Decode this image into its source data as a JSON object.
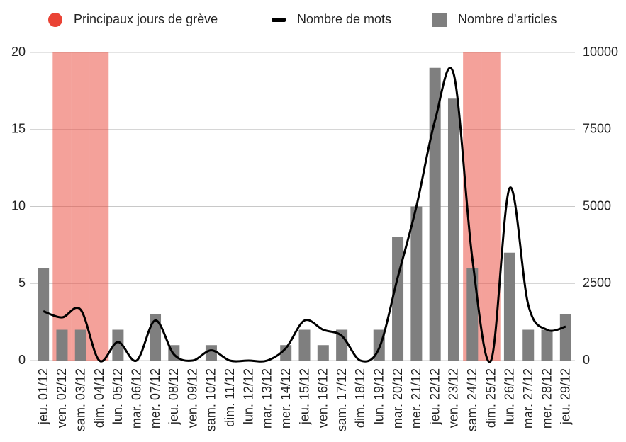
{
  "chart_data": {
    "type": "bar",
    "categories": [
      "jeu. 01/12",
      "ven. 02/12",
      "sam. 03/12",
      "dim. 04/12",
      "lun. 05/12",
      "mar. 06/12",
      "mer. 07/12",
      "jeu. 08/12",
      "ven. 09/12",
      "sam. 10/12",
      "dim. 11/12",
      "lun. 12/12",
      "mar. 13/12",
      "mer. 14/12",
      "jeu. 15/12",
      "ven. 16/12",
      "sam. 17/12",
      "dim. 18/12",
      "lun. 19/12",
      "mar. 20/12",
      "mer. 21/12",
      "jeu. 22/12",
      "ven. 23/12",
      "sam. 24/12",
      "dim. 25/12",
      "lun. 26/12",
      "mar. 27/12",
      "mer. 28/12",
      "jeu. 29/12"
    ],
    "series": [
      {
        "name": "Principaux jours de grève",
        "type": "band",
        "color": "#ea4335",
        "values": [
          null,
          20,
          20,
          20,
          null,
          null,
          null,
          null,
          null,
          null,
          null,
          null,
          null,
          null,
          null,
          null,
          null,
          null,
          null,
          null,
          null,
          null,
          null,
          20,
          20,
          null,
          null,
          null,
          null
        ]
      },
      {
        "name": "Nombre de mots",
        "type": "line",
        "color": "#000000",
        "axis": "y2",
        "values": [
          1600,
          1400,
          1650,
          0,
          600,
          0,
          1300,
          200,
          0,
          330,
          0,
          0,
          0,
          400,
          1300,
          1000,
          800,
          0,
          400,
          2700,
          5000,
          7800,
          9300,
          3300,
          0,
          5600,
          1800,
          1000,
          1100
        ]
      },
      {
        "name": "Nombre d'articles",
        "type": "bar",
        "color": "#7f7f7f",
        "values": [
          6,
          2,
          2,
          0,
          2,
          0,
          3,
          1,
          0,
          1,
          0,
          0,
          0,
          1,
          2,
          1,
          2,
          0,
          2,
          8,
          10,
          19,
          17,
          6,
          0,
          7,
          2,
          2,
          3
        ]
      }
    ],
    "ylim": [
      0,
      20
    ],
    "yticks": [
      0,
      5,
      10,
      15,
      20
    ],
    "y2lim": [
      0,
      10000
    ],
    "y2ticks": [
      0,
      2500,
      5000,
      7500,
      10000
    ],
    "grid": true,
    "legend": "top"
  }
}
